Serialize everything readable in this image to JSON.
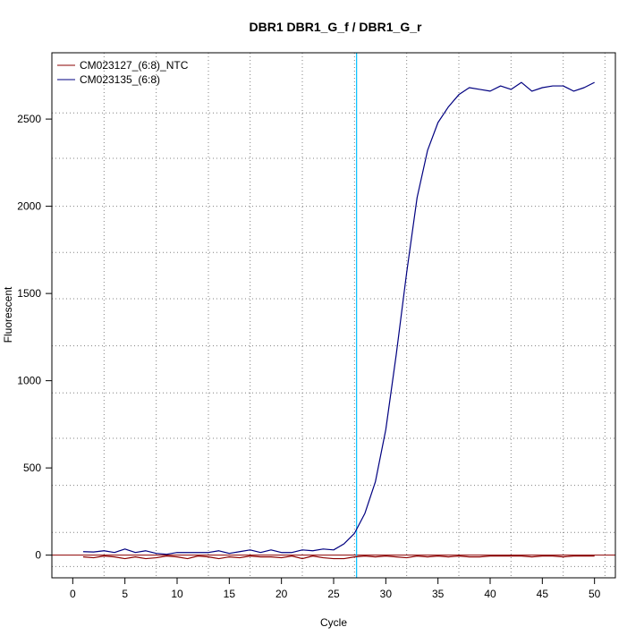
{
  "chart_data": {
    "type": "line",
    "title": "DBR1  DBR1_G_f / DBR1_G_r",
    "xlabel": "Cycle",
    "ylabel": "Fluorescent",
    "xlim": [
      -2,
      52
    ],
    "ylim": [
      -130,
      2880
    ],
    "x_ticks": [
      0,
      5,
      10,
      15,
      20,
      25,
      30,
      35,
      40,
      45,
      50
    ],
    "y_ticks": [
      0,
      500,
      1000,
      1500,
      2000,
      2500
    ],
    "grid": "dotted",
    "dotted_vlines": [
      3,
      8,
      13,
      17,
      22,
      27,
      32,
      37,
      42,
      47,
      51
    ],
    "dotted_hlines": [
      -65,
      130,
      400,
      670,
      930,
      1200,
      1470,
      1735,
      2000,
      2275,
      2535
    ],
    "zero_line_color": "#8B0000",
    "threshold_cycle": 27.2,
    "threshold_color": "#00BFFF",
    "legend_position": "top-left",
    "x": [
      1,
      2,
      3,
      4,
      5,
      6,
      7,
      8,
      9,
      10,
      11,
      12,
      13,
      14,
      15,
      16,
      17,
      18,
      19,
      20,
      21,
      22,
      23,
      24,
      25,
      26,
      27,
      28,
      29,
      30,
      31,
      32,
      33,
      34,
      35,
      36,
      37,
      38,
      39,
      40,
      41,
      42,
      43,
      44,
      45,
      46,
      47,
      48,
      49,
      50
    ],
    "series": [
      {
        "name": "CM023127_(6:8)_NTC",
        "color": "#8B0000",
        "values": [
          -10,
          -15,
          -5,
          -10,
          -20,
          -10,
          -20,
          -15,
          -5,
          -10,
          -20,
          -5,
          -10,
          -20,
          -10,
          -15,
          -5,
          -10,
          -10,
          -15,
          -5,
          -20,
          -5,
          -15,
          -20,
          -20,
          -10,
          -5,
          -10,
          -5,
          -10,
          -15,
          -5,
          -10,
          -5,
          -10,
          -5,
          -10,
          -10,
          -5,
          -5,
          -5,
          -5,
          -10,
          -5,
          -5,
          -10,
          -5,
          -5,
          -5
        ]
      },
      {
        "name": "CM023135_(6:8)",
        "color": "#000080",
        "values": [
          20,
          18,
          25,
          15,
          35,
          15,
          25,
          10,
          5,
          15,
          15,
          15,
          15,
          25,
          10,
          20,
          30,
          15,
          30,
          15,
          15,
          30,
          25,
          35,
          30,
          65,
          125,
          240,
          420,
          720,
          1150,
          1620,
          2050,
          2320,
          2480,
          2570,
          2640,
          2680,
          2670,
          2660,
          2690,
          2670,
          2710,
          2660,
          2680,
          2690,
          2690,
          2660,
          2680,
          2710
        ]
      }
    ]
  }
}
